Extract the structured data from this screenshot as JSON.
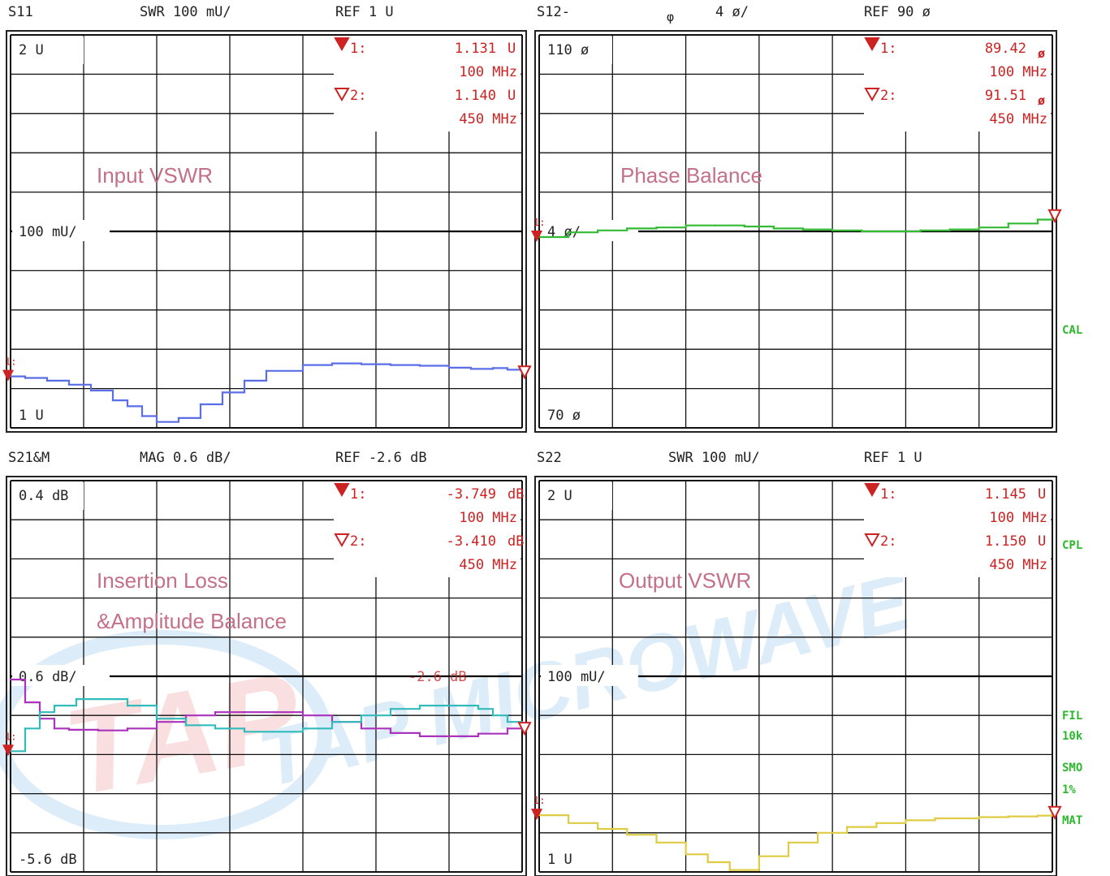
{
  "colors": {
    "grid": "#111111",
    "marker": "#cc2222",
    "vswr_in": "#5a6ee8",
    "phase": "#33bb33",
    "il_a": "#aa33bb",
    "il_b": "#33bbbb",
    "vswr_out": "#ddcc44",
    "label": "#c37088",
    "watermark": "#2a8fd8",
    "side": "#2db82d"
  },
  "watermark": {
    "logo": "TAP",
    "text": "TAP MICROWAVE"
  },
  "side_labels": {
    "cal": "CAL",
    "cpl": "CPL",
    "fil": "FIL",
    "fil2": "10k",
    "smo": "SMO",
    "smo2": "1%",
    "mat": "MAT"
  },
  "panels": [
    {
      "id": "s11",
      "header": {
        "param": "S11",
        "scale": "SWR 100 mU/",
        "ref": "REF 1 U"
      },
      "top_label": "2 U",
      "mid_label": "100 mU/",
      "bottom_label": "1 U",
      "title_lines": [
        "Input VSWR"
      ],
      "markers": [
        {
          "n": "1:",
          "value": "1.131",
          "unit": "U",
          "freq": "100 MHz"
        },
        {
          "n": "2:",
          "value": "1.140",
          "unit": "U",
          "freq": "450 MHz"
        }
      ],
      "chart_data": {
        "type": "line",
        "xlabel": "",
        "ylabel": "",
        "x_unit": "MHz",
        "ylim": [
          1.0,
          2.0
        ],
        "series": [
          {
            "color": "#5a6ee8",
            "x": [
              100,
              110,
              125,
              140,
              155,
              170,
              180,
              190,
              200,
              215,
              230,
              245,
              260,
              275,
              300,
              320,
              340,
              360,
              380,
              400,
              415,
              430,
              440,
              450
            ],
            "y": [
              1.131,
              1.127,
              1.12,
              1.11,
              1.095,
              1.07,
              1.055,
              1.03,
              1.015,
              1.025,
              1.06,
              1.09,
              1.12,
              1.145,
              1.16,
              1.164,
              1.162,
              1.16,
              1.158,
              1.153,
              1.15,
              1.152,
              1.148,
              1.14
            ]
          }
        ]
      }
    },
    {
      "id": "s12",
      "header": {
        "param": "S12-",
        "scale_sym": "φ",
        "scale": "4 ø/",
        "ref": "REF 90 ø"
      },
      "top_label": "110 ø",
      "mid_label": "4 ø/",
      "bottom_label": "70 ø",
      "title_lines": [
        "Phase Balance"
      ],
      "markers": [
        {
          "n": "1:",
          "value": "89.42",
          "unit": "ø",
          "freq": "100 MHz"
        },
        {
          "n": "2:",
          "value": "91.51",
          "unit": "ø",
          "freq": "450 MHz"
        }
      ],
      "chart_data": {
        "type": "line",
        "xlabel": "",
        "ylabel": "",
        "x_unit": "MHz",
        "ylim": [
          70,
          110
        ],
        "series": [
          {
            "color": "#33bb33",
            "x": [
              100,
              120,
              140,
              160,
              180,
              200,
              220,
              240,
              260,
              280,
              300,
              320,
              340,
              360,
              380,
              400,
              420,
              440,
              450
            ],
            "y": [
              89.42,
              89.9,
              90.1,
              90.3,
              90.4,
              90.6,
              90.6,
              90.5,
              90.3,
              90.2,
              90.1,
              90.0,
              90.0,
              90.1,
              90.2,
              90.4,
              90.8,
              91.2,
              91.51
            ]
          }
        ]
      }
    },
    {
      "id": "s21",
      "header": {
        "param": "S21&M",
        "scale": "MAG 0.6 dB/",
        "ref": "REF -2.6 dB"
      },
      "top_label": "0.4 dB",
      "mid_label": "0.6 dB/",
      "bottom_label": "-5.6 dB",
      "title_lines": [
        "Insertion Loss",
        "&Amplitude Balance"
      ],
      "ref_annotation": "-2.6 dB",
      "markers": [
        {
          "n": "1:",
          "value": "-3.749",
          "unit": "dB",
          "freq": "100 MHz"
        },
        {
          "n": "2:",
          "value": "-3.410",
          "unit": "dB",
          "freq": "450 MHz"
        }
      ],
      "chart_data": {
        "type": "line",
        "xlabel": "",
        "ylabel": "",
        "x_unit": "MHz",
        "ylim": [
          -5.6,
          0.4
        ],
        "series": [
          {
            "color": "#aa33bb",
            "x": [
              100,
              110,
              120,
              130,
              140,
              160,
              180,
              200,
              220,
              240,
              260,
              280,
              300,
              320,
              340,
              360,
              380,
              400,
              420,
              440,
              450
            ],
            "y": [
              -2.65,
              -3.0,
              -3.25,
              -3.4,
              -3.42,
              -3.43,
              -3.4,
              -3.3,
              -3.2,
              -3.15,
              -3.15,
              -3.15,
              -3.2,
              -3.3,
              -3.4,
              -3.47,
              -3.52,
              -3.52,
              -3.48,
              -3.4,
              -3.35
            ]
          },
          {
            "color": "#33bbbb",
            "x": [
              100,
              110,
              120,
              130,
              145,
              160,
              180,
              200,
              220,
              240,
              260,
              280,
              300,
              320,
              340,
              360,
              380,
              400,
              420,
              430,
              440,
              450
            ],
            "y": [
              -3.749,
              -3.4,
              -3.15,
              -3.05,
              -2.95,
              -2.95,
              -3.05,
              -3.25,
              -3.35,
              -3.4,
              -3.45,
              -3.45,
              -3.4,
              -3.3,
              -3.2,
              -3.1,
              -3.05,
              -3.05,
              -3.1,
              -3.2,
              -3.3,
              -3.41
            ]
          }
        ]
      }
    },
    {
      "id": "s22",
      "header": {
        "param": "S22",
        "scale": "SWR 100 mU/",
        "ref": "REF 1 U"
      },
      "top_label": "2 U",
      "mid_label": "100 mU/",
      "bottom_label": "1 U",
      "title_lines": [
        "Output VSWR"
      ],
      "markers": [
        {
          "n": "1:",
          "value": "1.145",
          "unit": "U",
          "freq": "100 MHz"
        },
        {
          "n": "2:",
          "value": "1.150",
          "unit": "U",
          "freq": "450 MHz"
        }
      ],
      "chart_data": {
        "type": "line",
        "xlabel": "",
        "ylabel": "",
        "x_unit": "MHz",
        "ylim": [
          1.0,
          2.0
        ],
        "series": [
          {
            "color": "#ddcc44",
            "x": [
              100,
              120,
              140,
              160,
              180,
              200,
              215,
              230,
              250,
              270,
              290,
              310,
              330,
              350,
              370,
              400,
              420,
              440,
              450
            ],
            "y": [
              1.145,
              1.125,
              1.11,
              1.095,
              1.075,
              1.045,
              1.025,
              1.005,
              1.04,
              1.075,
              1.1,
              1.115,
              1.125,
              1.132,
              1.137,
              1.14,
              1.142,
              1.144,
              1.15
            ]
          }
        ]
      }
    }
  ]
}
